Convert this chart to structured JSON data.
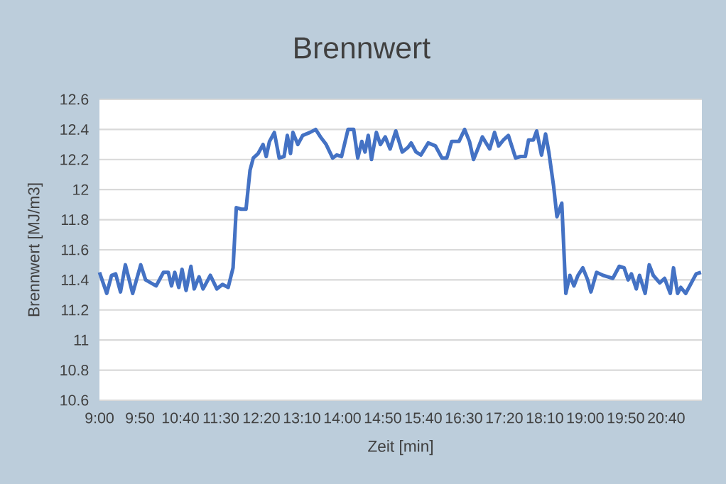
{
  "chart_data": {
    "type": "line",
    "title": "Brennwert",
    "xlabel": "Zeit [min]",
    "ylabel": "Brennwert [MJ/m3]",
    "x": [
      9.0,
      9.15,
      9.25,
      9.333,
      9.433,
      9.533,
      9.683,
      9.85,
      9.95,
      10.167,
      10.317,
      10.417,
      10.483,
      10.55,
      10.633,
      10.7,
      10.783,
      10.883,
      10.95,
      11.05,
      11.133,
      11.283,
      11.417,
      11.533,
      11.65,
      11.75,
      11.817,
      11.917,
      12.017,
      12.1,
      12.167,
      12.267,
      12.367,
      12.433,
      12.5,
      12.6,
      12.7,
      12.8,
      12.867,
      12.933,
      12.983,
      13.083,
      13.183,
      13.333,
      13.45,
      13.55,
      13.667,
      13.8,
      13.883,
      13.983,
      14.117,
      14.233,
      14.317,
      14.4,
      14.467,
      14.533,
      14.6,
      14.7,
      14.783,
      14.883,
      14.983,
      15.1,
      15.233,
      15.35,
      15.417,
      15.517,
      15.617,
      15.767,
      15.917,
      16.05,
      16.15,
      16.25,
      16.4,
      16.517,
      16.617,
      16.7,
      16.8,
      16.883,
      17.033,
      17.133,
      17.217,
      17.317,
      17.417,
      17.567,
      17.667,
      17.767,
      17.833,
      17.933,
      18.0,
      18.1,
      18.183,
      18.25,
      18.35,
      18.417,
      18.517,
      18.6,
      18.683,
      18.767,
      18.85,
      18.95,
      19.05,
      19.117,
      19.233,
      19.367,
      19.467,
      19.567,
      19.7,
      19.8,
      19.883,
      19.95,
      20.05,
      20.117,
      20.233,
      20.317,
      20.4,
      20.533,
      20.633,
      20.75,
      20.817,
      20.9,
      20.967,
      21.067,
      21.167,
      21.283,
      21.383
    ],
    "series": [
      {
        "color": "#4472c4",
        "values": [
          11.45,
          11.31,
          11.43,
          11.44,
          11.32,
          11.5,
          11.31,
          11.5,
          11.4,
          11.36,
          11.45,
          11.45,
          11.36,
          11.45,
          11.35,
          11.47,
          11.33,
          11.49,
          11.34,
          11.42,
          11.34,
          11.43,
          11.34,
          11.37,
          11.35,
          11.48,
          11.88,
          11.87,
          11.87,
          12.13,
          12.21,
          12.24,
          12.3,
          12.22,
          12.32,
          12.38,
          12.21,
          12.22,
          12.36,
          12.24,
          12.38,
          12.3,
          12.36,
          12.38,
          12.4,
          12.35,
          12.3,
          12.21,
          12.23,
          12.22,
          12.4,
          12.4,
          12.21,
          12.32,
          12.25,
          12.36,
          12.2,
          12.38,
          12.3,
          12.35,
          12.27,
          12.39,
          12.25,
          12.28,
          12.31,
          12.25,
          12.23,
          12.31,
          12.29,
          12.21,
          12.21,
          12.32,
          12.32,
          12.4,
          12.32,
          12.2,
          12.28,
          12.35,
          12.27,
          12.38,
          12.29,
          12.33,
          12.36,
          12.21,
          12.22,
          12.22,
          12.33,
          12.33,
          12.39,
          12.23,
          12.37,
          12.25,
          12.02,
          11.82,
          11.91,
          11.31,
          11.43,
          11.36,
          11.43,
          11.48,
          11.4,
          11.32,
          11.45,
          11.43,
          11.42,
          11.41,
          11.49,
          11.48,
          11.4,
          11.44,
          11.34,
          11.43,
          11.31,
          11.5,
          11.43,
          11.38,
          11.41,
          11.31,
          11.48,
          11.31,
          11.35,
          11.31,
          11.37,
          11.44,
          11.45
        ]
      }
    ],
    "xlim": [
      9,
      21.4
    ],
    "xticks": [
      {
        "value": 9,
        "label": "9:00"
      },
      {
        "value": 9.833,
        "label": "9:50"
      },
      {
        "value": 10.667,
        "label": "10:40"
      },
      {
        "value": 11.5,
        "label": "11:30"
      },
      {
        "value": 12.333,
        "label": "12:20"
      },
      {
        "value": 13.167,
        "label": "13:10"
      },
      {
        "value": 14,
        "label": "14:00"
      },
      {
        "value": 14.833,
        "label": "14:50"
      },
      {
        "value": 15.667,
        "label": "15:40"
      },
      {
        "value": 16.5,
        "label": "16:30"
      },
      {
        "value": 17.333,
        "label": "17:20"
      },
      {
        "value": 18.167,
        "label": "18:10"
      },
      {
        "value": 19,
        "label": "19:00"
      },
      {
        "value": 19.833,
        "label": "19:50"
      },
      {
        "value": 20.667,
        "label": "20:40"
      }
    ],
    "ylim": [
      10.6,
      12.6
    ],
    "yticks": [
      10.6,
      10.8,
      11,
      11.2,
      11.4,
      11.6,
      11.8,
      12,
      12.2,
      12.4,
      12.6
    ],
    "grid": "y"
  }
}
